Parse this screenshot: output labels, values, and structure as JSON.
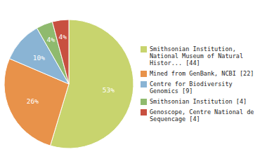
{
  "chart_data": {
    "type": "pie",
    "categories": [
      "Smithsonian Institution,\nNational Museum of Natural\nHistor... [44]",
      "Mined from GenBank, NCBI [22]",
      "Centre for Biodiversity\nGenomics [9]",
      "Smithsonian Institution [4]",
      "Genoscope, Centre National de\nSequencage [4]"
    ],
    "values": [
      53,
      26,
      10,
      4,
      4
    ],
    "value_labels": [
      "53%",
      "26%",
      "10%",
      "4%",
      "4%"
    ],
    "colors": [
      "#c8d46e",
      "#e8924a",
      "#8ab4d4",
      "#8fba6e",
      "#c85040"
    ],
    "data_labels": true,
    "legend": "right"
  }
}
